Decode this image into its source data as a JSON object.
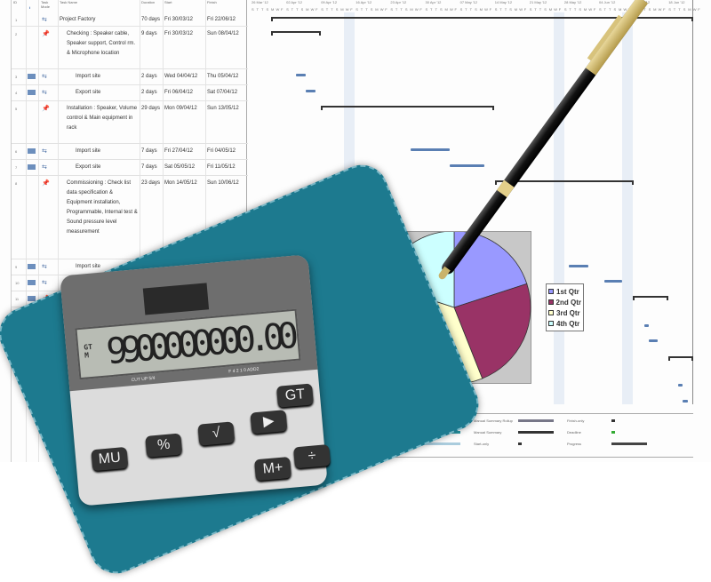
{
  "table": {
    "headers": {
      "id": "ID",
      "info": "i",
      "mode": "Task Mode",
      "name": "Task Name",
      "duration": "Duration",
      "start": "Start",
      "finish": "Finish"
    },
    "rows": [
      {
        "id": "1",
        "name": "Project Factory",
        "duration": "70 days",
        "start": "Fri 30/03/12",
        "finish": "Fri 22/06/12",
        "icon": "auto-task",
        "summary": true
      },
      {
        "id": "2",
        "name": "Checking : Speaker cable, Speaker support, Control rm. & Microphone location",
        "duration": "9 days",
        "start": "Fri 30/03/12",
        "finish": "Sun 08/04/12",
        "icon": "pin",
        "summary": true
      },
      {
        "id": "3",
        "name": "Import site",
        "duration": "2 days",
        "start": "Wed 04/04/12",
        "finish": "Thu 05/04/12",
        "icon": "auto-task"
      },
      {
        "id": "4",
        "name": "Export site",
        "duration": "2 days",
        "start": "Fri 06/04/12",
        "finish": "Sat 07/04/12",
        "icon": "auto-task"
      },
      {
        "id": "5",
        "name": "Installation : Speaker, Volume control & Main equipment in rack",
        "duration": "29 days",
        "start": "Mon 09/04/12",
        "finish": "Sun 13/05/12",
        "icon": "pin",
        "summary": true
      },
      {
        "id": "6",
        "name": "Import site",
        "duration": "7 days",
        "start": "Fri 27/04/12",
        "finish": "Fri 04/05/12",
        "icon": "auto-task"
      },
      {
        "id": "7",
        "name": "Export site",
        "duration": "7 days",
        "start": "Sat 05/05/12",
        "finish": "Fri 11/05/12",
        "icon": "auto-task"
      },
      {
        "id": "8",
        "name": "Commissioning : Check list data specification & Equipment installation, Programmable, Internal test & Sound pressure level measurement",
        "duration": "23 days",
        "start": "Mon 14/05/12",
        "finish": "Sun 10/06/12",
        "icon": "pin",
        "summary": true
      },
      {
        "id": "9",
        "name": "Import site",
        "duration": "",
        "start": "",
        "finish": "",
        "icon": "auto-task"
      },
      {
        "id": "10",
        "name": "",
        "duration": "",
        "start": "",
        "finish": "",
        "icon": "auto-task"
      },
      {
        "id": "11",
        "name": "",
        "duration": "",
        "start": "",
        "finish": "",
        "icon": "pin"
      }
    ]
  },
  "timeline": {
    "weeks": [
      "26 Mar '12",
      "02 Apr '12",
      "09 Apr '12",
      "16 Apr '12",
      "23 Apr '12",
      "30 Apr '12",
      "07 May '12",
      "14 May '12",
      "21 May '12",
      "28 May '12",
      "04 Jun '12",
      "11 Jun '12",
      "18 Jun '12"
    ],
    "days": [
      "S",
      "T",
      "T",
      "S",
      "M",
      "W",
      "F"
    ],
    "bar_color": "#5a7fb3"
  },
  "legend": [
    {
      "label": "Inactive Summary"
    },
    {
      "label": "Manual Summary Rollup"
    },
    {
      "label": "Finish-only"
    },
    {
      "label": "Manual Task"
    },
    {
      "label": "Manual Summary"
    },
    {
      "label": "Deadline"
    },
    {
      "label": "Duration-only"
    },
    {
      "label": "Start-only"
    },
    {
      "label": "Progress"
    }
  ],
  "chart_data": {
    "type": "pie",
    "categories": [
      "1st Qtr",
      "2nd Qtr",
      "3rd Qtr",
      "4th Qtr"
    ],
    "values": [
      20,
      24,
      36,
      20
    ],
    "colors": [
      "#9999ff",
      "#993366",
      "#ffffcc",
      "#ccffff"
    ],
    "legend_position": "right"
  },
  "calculator": {
    "display": "9900000000.00",
    "indicators": "GT\nM",
    "switch_left": "CUT UP 5/4",
    "switch_right": "F 4 2 1 0 ADD2",
    "keys": [
      "MU",
      "%",
      "√",
      "▶",
      "GT",
      "÷",
      "M+"
    ]
  }
}
